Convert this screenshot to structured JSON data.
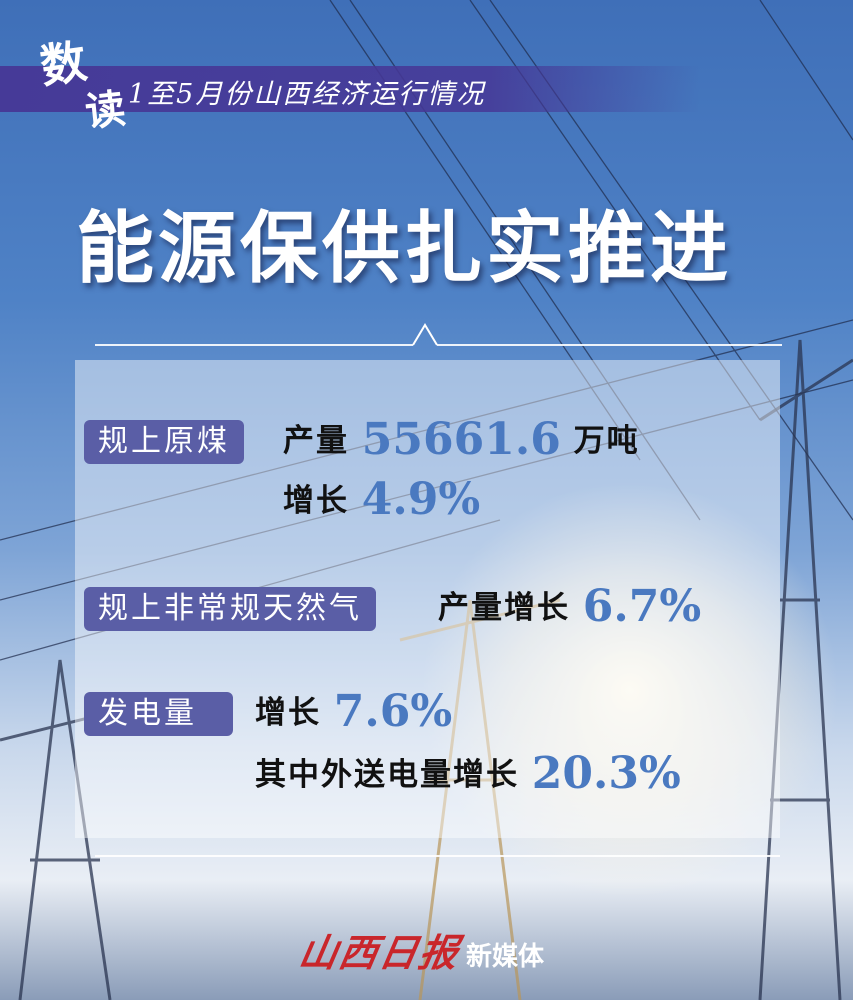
{
  "header": {
    "shu": "数",
    "du": "读",
    "subtitle": "1至5月份山西经济运行情况"
  },
  "title": "能源保供扎实推进",
  "stats": {
    "coal": {
      "label": "规上原煤",
      "output_prefix": "产量",
      "output_value": "55661.6",
      "output_unit": "万吨",
      "growth_prefix": "增长",
      "growth_value": "4.9%"
    },
    "gas": {
      "label": "规上非常规天然气",
      "growth_prefix": "产量增长",
      "growth_value": "6.7%"
    },
    "power": {
      "label": "发电量",
      "growth_prefix": "增长",
      "growth_value": "7.6%",
      "export_prefix": "其中外送电量增长",
      "export_value": "20.3%"
    }
  },
  "footer": {
    "logo": "山西日报",
    "media": "新媒体"
  },
  "colors": {
    "band": "#46379a",
    "label_bg": "#5a5ea6",
    "number": "#4a79c0",
    "logo": "#c9262b"
  }
}
